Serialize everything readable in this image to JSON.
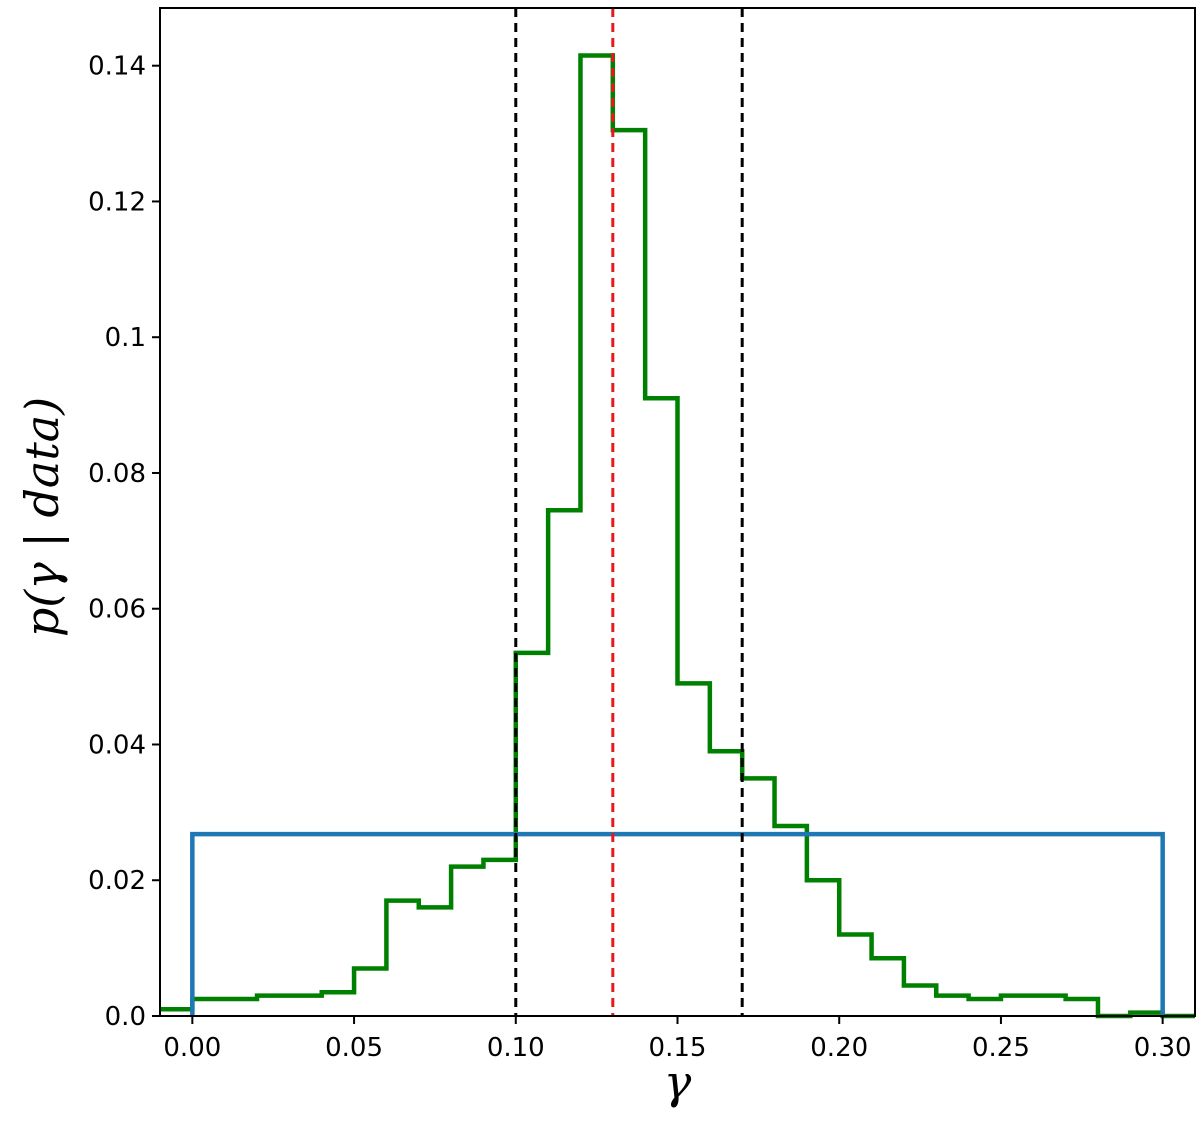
{
  "chart_data": {
    "type": "histogram",
    "xlabel": "γ",
    "ylabel": "p(γ | data)",
    "xlim": [
      -0.01,
      0.31
    ],
    "ylim": [
      0,
      0.1485
    ],
    "x_ticks": [
      {
        "value": 0.0,
        "label": "0.00"
      },
      {
        "value": 0.05,
        "label": "0.05"
      },
      {
        "value": 0.1,
        "label": "0.10"
      },
      {
        "value": 0.15,
        "label": "0.15"
      },
      {
        "value": 0.2,
        "label": "0.20"
      },
      {
        "value": 0.25,
        "label": "0.25"
      },
      {
        "value": 0.3,
        "label": "0.30"
      }
    ],
    "y_ticks": [
      {
        "value": 0.0,
        "label": "0.0"
      },
      {
        "value": 0.02,
        "label": "0.02"
      },
      {
        "value": 0.04,
        "label": "0.04"
      },
      {
        "value": 0.06,
        "label": "0.06"
      },
      {
        "value": 0.08,
        "label": "0.08"
      },
      {
        "value": 0.1,
        "label": "0.1"
      },
      {
        "value": 0.12,
        "label": "0.12"
      },
      {
        "value": 0.14,
        "label": "0.14"
      }
    ],
    "series": [
      {
        "color": "#008000",
        "style": "step",
        "bin_edges": [
          -0.01,
          0.0,
          0.01,
          0.02,
          0.03,
          0.04,
          0.05,
          0.06,
          0.07,
          0.08,
          0.09,
          0.1,
          0.11,
          0.12,
          0.13,
          0.14,
          0.15,
          0.16,
          0.17,
          0.18,
          0.19,
          0.2,
          0.21,
          0.22,
          0.23,
          0.24,
          0.25,
          0.26,
          0.27,
          0.28,
          0.29,
          0.3,
          0.31
        ],
        "values": [
          0.001,
          0.0025,
          0.0025,
          0.003,
          0.003,
          0.0035,
          0.007,
          0.017,
          0.016,
          0.022,
          0.023,
          0.0535,
          0.0745,
          0.1415,
          0.1305,
          0.091,
          0.049,
          0.039,
          0.035,
          0.028,
          0.02,
          0.012,
          0.0085,
          0.0045,
          0.003,
          0.0025,
          0.003,
          0.003,
          0.0025,
          0.0,
          0.0005,
          0.0
        ]
      },
      {
        "color": "#1f77b4",
        "style": "prior",
        "range": [
          0.0,
          0.3
        ],
        "value": 0.0268
      }
    ],
    "vertical_lines": [
      {
        "x": 0.1,
        "color": "#000000",
        "style": "dashed"
      },
      {
        "x": 0.13,
        "color": "#e41a1c",
        "style": "dashed"
      },
      {
        "x": 0.17,
        "color": "#000000",
        "style": "dashed"
      }
    ],
    "grid": false,
    "legend": "none"
  }
}
